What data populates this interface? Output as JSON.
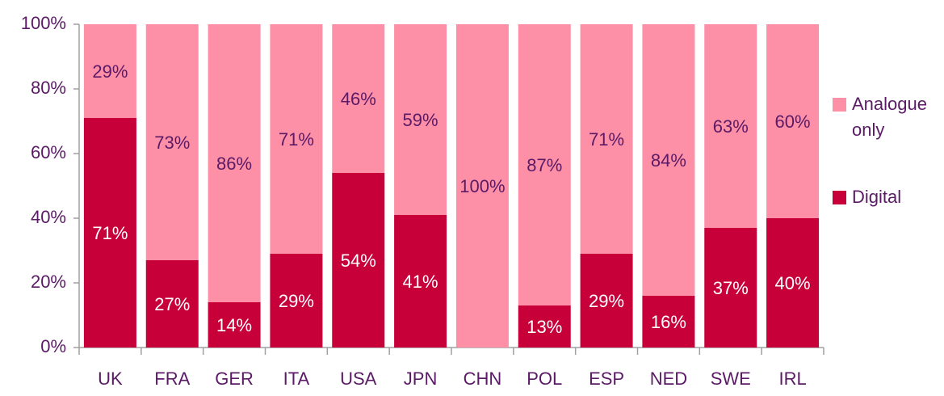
{
  "chart_data": {
    "type": "stacked_bar",
    "categories": [
      "UK",
      "FRA",
      "GER",
      "ITA",
      "USA",
      "JPN",
      "CHN",
      "POL",
      "ESP",
      "NED",
      "SWE",
      "IRL"
    ],
    "series": [
      {
        "name": "Digital",
        "color": "#c8003a",
        "label_color": "#ffffff",
        "values": [
          71,
          27,
          14,
          29,
          54,
          41,
          0,
          13,
          29,
          16,
          37,
          40
        ],
        "value_labels": [
          "71%",
          "27%",
          "14%",
          "29%",
          "54%",
          "41%",
          null,
          "13%",
          "29%",
          "16%",
          "37%",
          "40%"
        ]
      },
      {
        "name": "Analogue only",
        "color": "#fd8fa7",
        "label_color": "#5b1a66",
        "values": [
          29,
          73,
          86,
          71,
          46,
          59,
          100,
          87,
          71,
          84,
          63,
          60
        ],
        "value_labels": [
          "29%",
          "73%",
          "86%",
          "71%",
          "46%",
          "59%",
          "100%",
          "87%",
          "71%",
          "84%",
          "63%",
          "60%"
        ]
      }
    ],
    "ylim": [
      0,
      100
    ],
    "yticks": [
      {
        "value": 0,
        "label": "0%"
      },
      {
        "value": 20,
        "label": "20%"
      },
      {
        "value": 40,
        "label": "40%"
      },
      {
        "value": 60,
        "label": "60%"
      },
      {
        "value": 80,
        "label": "80%"
      },
      {
        "value": 100,
        "label": "100%"
      }
    ],
    "legend": "right"
  }
}
